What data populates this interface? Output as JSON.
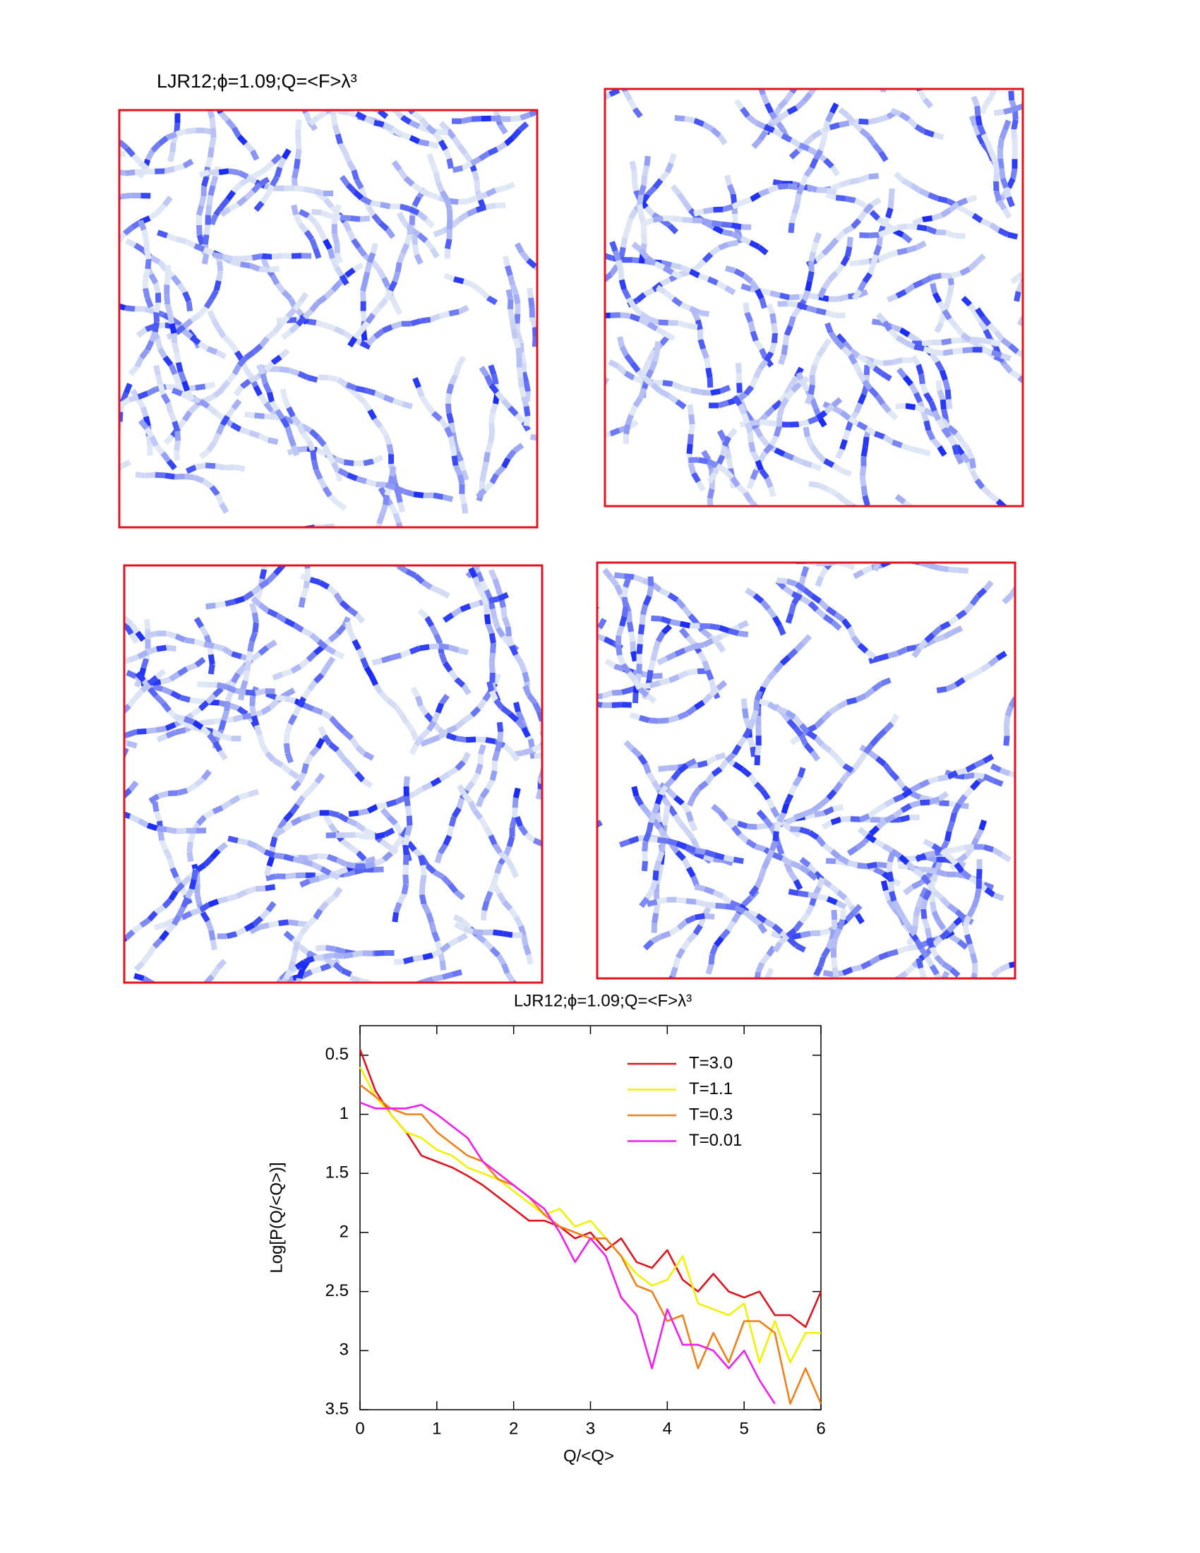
{
  "figure_title": "LJR12;ϕ=1.09;Q=<F>λ³",
  "chart_data": {
    "type": "line",
    "title": "LJR12;ϕ=1.09;Q=<F>λ³",
    "x_label": "Q/<Q>",
    "y_label": "Log[P(Q/<Q>)]",
    "x": [
      0,
      0.2,
      0.4,
      0.6,
      0.8,
      1.0,
      1.2,
      1.4,
      1.6,
      1.8,
      2.0,
      2.2,
      2.4,
      2.6,
      2.8,
      3.0,
      3.2,
      3.4,
      3.6,
      3.8,
      4.0,
      4.2,
      4.4,
      4.6,
      4.8,
      5.0,
      5.2,
      5.4,
      5.6,
      5.8,
      6.0
    ],
    "series": [
      {
        "name": "T=3.0",
        "color": "#e0141e",
        "values": [
          0.45,
          0.8,
          1.0,
          1.15,
          1.35,
          1.4,
          1.45,
          1.52,
          1.6,
          1.7,
          1.8,
          1.9,
          1.9,
          1.95,
          2.05,
          2.0,
          2.15,
          2.05,
          2.25,
          2.3,
          2.15,
          2.4,
          2.5,
          2.35,
          2.5,
          2.55,
          2.5,
          2.7,
          2.7,
          2.8,
          2.5
        ]
      },
      {
        "name": "T=1.1",
        "color": "#f2f200",
        "values": [
          0.6,
          0.85,
          1.0,
          1.15,
          1.2,
          1.3,
          1.35,
          1.45,
          1.5,
          1.55,
          1.65,
          1.75,
          1.85,
          1.8,
          1.95,
          1.9,
          2.05,
          2.2,
          2.35,
          2.45,
          2.4,
          2.2,
          2.6,
          2.65,
          2.7,
          2.6,
          3.1,
          2.75,
          3.1,
          2.85,
          2.85
        ]
      },
      {
        "name": "T=0.3",
        "color": "#f08018",
        "values": [
          0.75,
          0.85,
          0.95,
          1.0,
          1.0,
          1.15,
          1.25,
          1.35,
          1.4,
          1.55,
          1.6,
          1.7,
          1.85,
          1.95,
          2.0,
          2.05,
          2.05,
          2.2,
          2.45,
          2.5,
          2.75,
          2.7,
          3.15,
          2.85,
          3.1,
          2.75,
          2.75,
          2.85,
          3.45,
          3.15,
          3.45
        ]
      },
      {
        "name": "T=0.01",
        "color": "#f01ef0",
        "values": [
          0.9,
          0.95,
          0.95,
          0.95,
          0.92,
          1.0,
          1.1,
          1.2,
          1.4,
          1.5,
          1.6,
          1.7,
          1.8,
          2.0,
          2.25,
          2.05,
          2.2,
          2.55,
          2.7,
          3.15,
          2.65,
          2.95,
          2.95,
          3.0,
          3.15,
          3.0,
          3.25,
          3.45,
          null,
          null,
          null
        ]
      }
    ],
    "xlim": [
      0,
      6
    ],
    "xticks": [
      0,
      1,
      2,
      3,
      4,
      5,
      6
    ],
    "ylim": [
      0.25,
      3.5
    ],
    "y_inverted": true,
    "yticks": [
      0.5,
      1,
      1.5,
      2,
      2.5,
      3,
      3.5
    ],
    "legend": "top-right",
    "grid": false
  }
}
